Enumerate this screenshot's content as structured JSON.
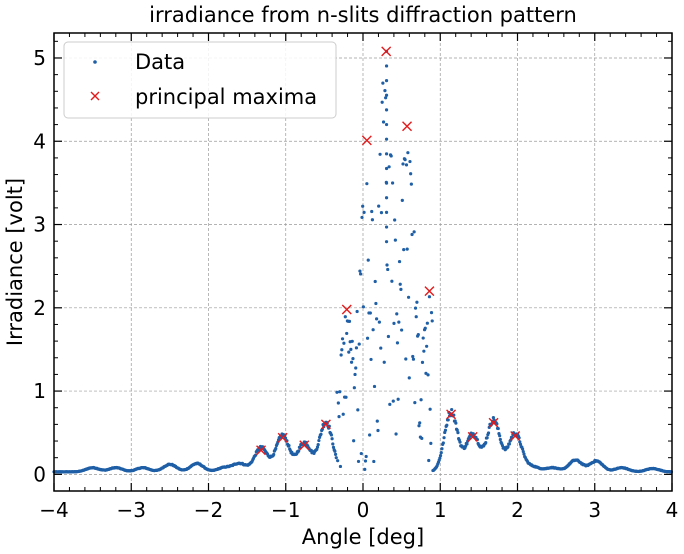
{
  "chart_data": {
    "type": "scatter",
    "title": "irradiance from n-slits diffraction pattern",
    "xlabel": "Angle [deg]",
    "ylabel": "Irradiance [volt]",
    "xlim": [
      -4,
      4
    ],
    "ylim": [
      -0.2,
      5.3
    ],
    "xticks": [
      -4,
      -3,
      -2,
      -1,
      0,
      1,
      2,
      3,
      4
    ],
    "yticks": [
      0,
      1,
      2,
      3,
      4,
      5
    ],
    "xtick_labels": [
      "−4",
      "−3",
      "−2",
      "−1",
      "0",
      "1",
      "2",
      "3",
      "4"
    ],
    "ytick_labels": [
      "0",
      "1",
      "2",
      "3",
      "4",
      "5"
    ],
    "grid": true,
    "legend_position": "top-left",
    "colors": {
      "data": "#1f5fa6",
      "maxima": "#e31a1c",
      "grid": "#9a9a9a"
    },
    "series": [
      {
        "name": "Data",
        "marker": "dot",
        "envelope": {
          "center": 0.28,
          "central_width": 0.62,
          "noise_floor": 0.03,
          "sidelobe_peaks": [
            {
              "x": -3.5,
              "y": 0.05
            },
            {
              "x": -3.2,
              "y": 0.05
            },
            {
              "x": -2.85,
              "y": 0.05
            },
            {
              "x": -2.5,
              "y": 0.09
            },
            {
              "x": -2.15,
              "y": 0.1
            },
            {
              "x": -1.8,
              "y": 0.05
            },
            {
              "x": -1.6,
              "y": 0.1
            },
            {
              "x": -1.32,
              "y": 0.29
            },
            {
              "x": -1.04,
              "y": 0.44
            },
            {
              "x": -0.76,
              "y": 0.35
            },
            {
              "x": -0.48,
              "y": 0.6
            },
            {
              "x": 1.14,
              "y": 0.72
            },
            {
              "x": 1.42,
              "y": 0.45
            },
            {
              "x": 1.69,
              "y": 0.62
            },
            {
              "x": 1.97,
              "y": 0.46
            },
            {
              "x": 2.2,
              "y": 0.06
            },
            {
              "x": 2.45,
              "y": 0.05
            },
            {
              "x": 2.75,
              "y": 0.14
            },
            {
              "x": 3.02,
              "y": 0.13
            },
            {
              "x": 3.35,
              "y": 0.05
            },
            {
              "x": 3.75,
              "y": 0.04
            }
          ]
        }
      },
      {
        "name": "principal maxima",
        "marker": "x",
        "points": [
          {
            "x": -1.32,
            "y": 0.29
          },
          {
            "x": -1.04,
            "y": 0.44
          },
          {
            "x": -0.76,
            "y": 0.35
          },
          {
            "x": -0.48,
            "y": 0.6
          },
          {
            "x": -0.21,
            "y": 1.98
          },
          {
            "x": 0.05,
            "y": 4.01
          },
          {
            "x": 0.3,
            "y": 5.08
          },
          {
            "x": 0.57,
            "y": 4.18
          },
          {
            "x": 0.86,
            "y": 2.2
          },
          {
            "x": 1.14,
            "y": 0.72
          },
          {
            "x": 1.42,
            "y": 0.45
          },
          {
            "x": 1.69,
            "y": 0.62
          },
          {
            "x": 1.97,
            "y": 0.46
          }
        ]
      }
    ]
  }
}
